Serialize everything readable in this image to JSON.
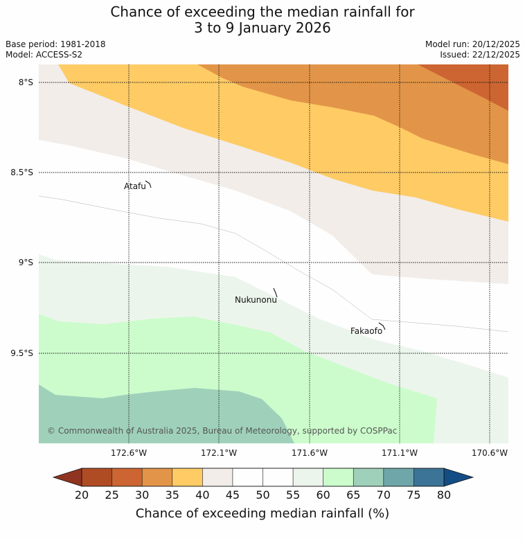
{
  "title": {
    "line1": "Chance of exceeding the median rainfall for",
    "line2": "3 to 9 January 2026"
  },
  "meta": {
    "base_period": "Base period: 1981-2018",
    "model": "Model: ACCESS-S2",
    "model_run": "Model run: 20/12/2025",
    "issued": "Issued: 22/12/2025"
  },
  "map": {
    "lat_labels": [
      "8°S",
      "8.5°S",
      "9°S",
      "9.5°S"
    ],
    "lon_labels": [
      "172.6°W",
      "172.1°W",
      "171.6°W",
      "171.1°W",
      "170.6°W"
    ],
    "places": [
      {
        "name": "Atafu"
      },
      {
        "name": "Nukunonu"
      },
      {
        "name": "Fakaofo"
      }
    ],
    "copyright": "© Commonwealth of Australia 2025, Bureau of Meteorology, supported by COSPPac"
  },
  "colorbar": {
    "ticks": [
      "20",
      "25",
      "30",
      "35",
      "40",
      "45",
      "50",
      "55",
      "60",
      "65",
      "70",
      "75",
      "80"
    ],
    "colors": [
      "#b04c24",
      "#cc6531",
      "#e29548",
      "#fecb65",
      "#f2ede9",
      "#fdfefd",
      "#fdfefd",
      "#ecf5ec",
      "#ccfccc",
      "#9fd1ba",
      "#6fa6a9",
      "#3c7497"
    ],
    "under_color": "#8f3420",
    "over_color": "#134d86",
    "label": "Chance of exceeding median rainfall (%)"
  }
}
